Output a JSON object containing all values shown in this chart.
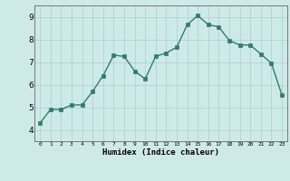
{
  "x": [
    0,
    1,
    2,
    3,
    4,
    5,
    6,
    7,
    8,
    9,
    10,
    11,
    12,
    13,
    14,
    15,
    16,
    17,
    18,
    19,
    20,
    21,
    22,
    23
  ],
  "y": [
    4.3,
    4.9,
    4.9,
    5.1,
    5.1,
    5.7,
    6.4,
    7.3,
    7.25,
    6.6,
    6.25,
    7.25,
    7.4,
    7.65,
    8.65,
    9.05,
    8.65,
    8.55,
    7.95,
    7.75,
    7.75,
    7.35,
    6.95,
    5.55
  ],
  "xlabel": "Humidex (Indice chaleur)",
  "xlim": [
    -0.5,
    23.5
  ],
  "ylim": [
    3.5,
    9.5
  ],
  "yticks": [
    4,
    5,
    6,
    7,
    8,
    9
  ],
  "xticks": [
    0,
    1,
    2,
    3,
    4,
    5,
    6,
    7,
    8,
    9,
    10,
    11,
    12,
    13,
    14,
    15,
    16,
    17,
    18,
    19,
    20,
    21,
    22,
    23
  ],
  "line_color": "#2e7d6e",
  "marker_color": "#2e7d6e",
  "bg_color": "#ceeae8",
  "grid_color": "#aacfcc",
  "border_color": "#777777"
}
